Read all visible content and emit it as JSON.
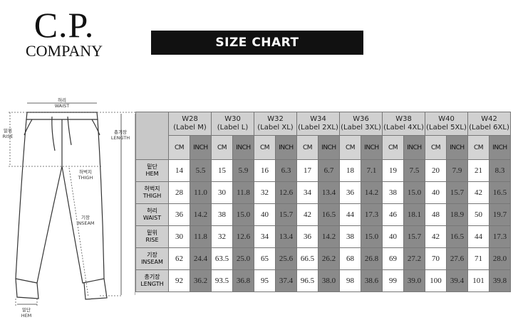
{
  "logo": {
    "line1": "C.P.",
    "line2": "COMPANY"
  },
  "banner": "SIZE CHART",
  "diagram": {
    "waist": [
      "허리",
      "WAIST"
    ],
    "rise": [
      "밑위",
      "RISE"
    ],
    "length": [
      "총기장",
      "LENGTH"
    ],
    "thigh": [
      "허벅지",
      "THIGH"
    ],
    "inseam": [
      "기장",
      "INSEAM"
    ],
    "hem": [
      "밑단",
      "HEM"
    ]
  },
  "table": {
    "sizes": [
      [
        "W28",
        "(Label M)"
      ],
      [
        "W30",
        "(Label L)"
      ],
      [
        "W32",
        "(Label XL)"
      ],
      [
        "W34",
        "(Label 2XL)"
      ],
      [
        "W36",
        "(Label 3XL)"
      ],
      [
        "W38",
        "(Label 4XL)"
      ],
      [
        "W40",
        "(Label 5XL)"
      ],
      [
        "W42",
        "(Label 6XL)"
      ]
    ],
    "units": [
      "CM",
      "INCH"
    ],
    "rows": [
      {
        "ko": "밑단",
        "en": "HEM",
        "values": [
          "14",
          "5.5",
          "15",
          "5.9",
          "16",
          "6.3",
          "17",
          "6.7",
          "18",
          "7.1",
          "19",
          "7.5",
          "20",
          "7.9",
          "21",
          "8.3"
        ]
      },
      {
        "ko": "허벅지",
        "en": "THIGH",
        "values": [
          "28",
          "11.0",
          "30",
          "11.8",
          "32",
          "12.6",
          "34",
          "13.4",
          "36",
          "14.2",
          "38",
          "15.0",
          "40",
          "15.7",
          "42",
          "16.5"
        ]
      },
      {
        "ko": "허리",
        "en": "WAIST",
        "values": [
          "36",
          "14.2",
          "38",
          "15.0",
          "40",
          "15.7",
          "42",
          "16.5",
          "44",
          "17.3",
          "46",
          "18.1",
          "48",
          "18.9",
          "50",
          "19.7"
        ]
      },
      {
        "ko": "밑위",
        "en": "RISE",
        "values": [
          "30",
          "11.8",
          "32",
          "12.6",
          "34",
          "13.4",
          "36",
          "14.2",
          "38",
          "15.0",
          "40",
          "15.7",
          "42",
          "16.5",
          "44",
          "17.3"
        ]
      },
      {
        "ko": "기장",
        "en": "INSEAM",
        "values": [
          "62",
          "24.4",
          "63.5",
          "25.0",
          "65",
          "25.6",
          "66.5",
          "26.2",
          "68",
          "26.8",
          "69",
          "27.2",
          "70",
          "27.6",
          "71",
          "28.0"
        ]
      },
      {
        "ko": "총기장",
        "en": "LENGTH",
        "values": [
          "92",
          "36.2",
          "93.5",
          "36.8",
          "95",
          "37.4",
          "96.5",
          "38.0",
          "98",
          "38.6",
          "99",
          "39.0",
          "100",
          "39.4",
          "101",
          "39.8"
        ]
      }
    ]
  }
}
